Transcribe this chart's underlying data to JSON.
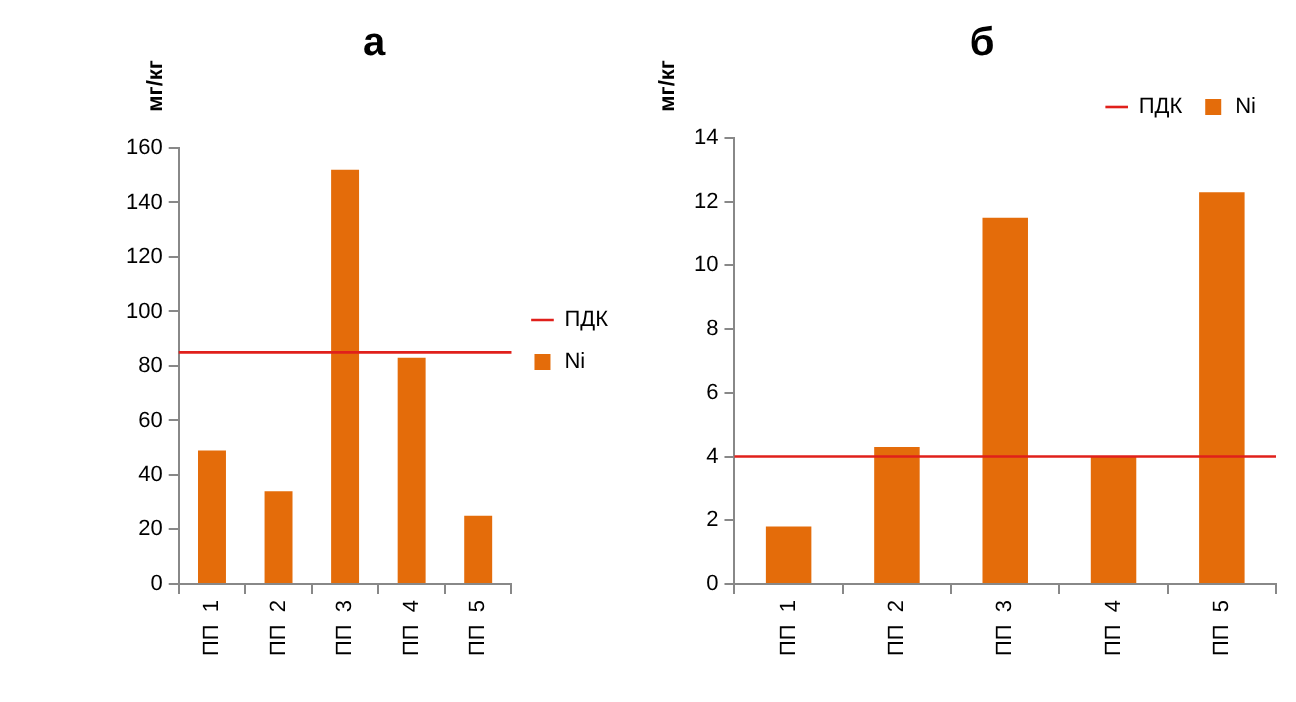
{
  "chart_data": [
    {
      "type": "bar",
      "title": "а",
      "ylabel": "мг/кг",
      "categories": [
        "ПП  1",
        "ПП  2",
        "ПП  3",
        "ПП  4",
        "ПП  5"
      ],
      "series": [
        {
          "name": "Ni",
          "color": "#e46c0a",
          "values": [
            49,
            34,
            152,
            83,
            25
          ]
        }
      ],
      "ylim": [
        0,
        160
      ],
      "yticks": [
        0,
        20,
        40,
        60,
        80,
        100,
        120,
        140,
        160
      ],
      "grid": false,
      "legend": "right",
      "ref_lines": [
        {
          "axis": "y",
          "value": 85,
          "label": "ПДК",
          "color": "#e0201b"
        }
      ]
    },
    {
      "type": "bar",
      "title": "б",
      "ylabel": "мг/кг",
      "categories": [
        "ПП  1",
        "ПП  2",
        "ПП  3",
        "ПП  4",
        "ПП  5"
      ],
      "series": [
        {
          "name": "Ni",
          "color": "#e46c0a",
          "values": [
            1.8,
            4.3,
            11.5,
            4.0,
            12.3
          ]
        }
      ],
      "ylim": [
        0,
        14
      ],
      "yticks": [
        0,
        2,
        4,
        6,
        8,
        10,
        12,
        14
      ],
      "grid": false,
      "legend": "top right",
      "ref_lines": [
        {
          "axis": "y",
          "value": 4,
          "label": "ПДК",
          "color": "#e0201b"
        }
      ]
    }
  ]
}
